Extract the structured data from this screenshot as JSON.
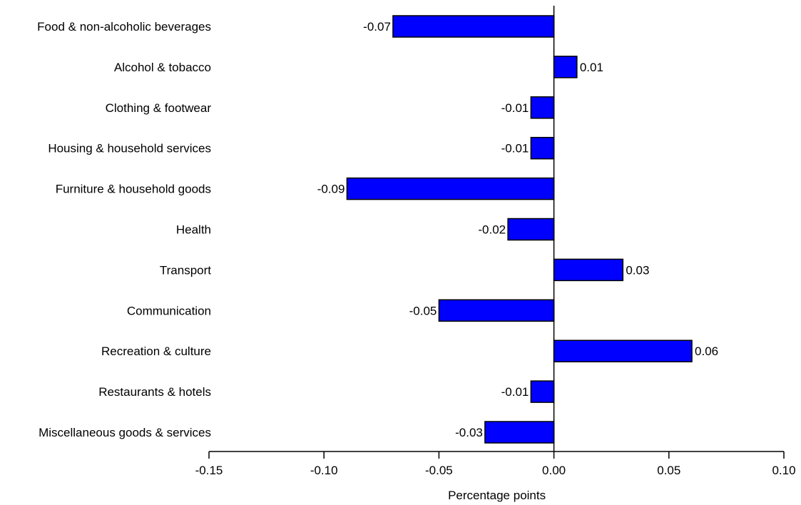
{
  "chart_data": {
    "type": "bar",
    "orientation": "horizontal",
    "title": "",
    "xlabel": "Percentage points",
    "ylabel": "",
    "categories": [
      "Food & non-alcoholic beverages",
      "Alcohol & tobacco",
      "Clothing & footwear",
      "Housing & household services",
      "Furniture & household goods",
      "Health",
      "Transport",
      "Communication",
      "Recreation & culture",
      "Restaurants & hotels",
      "Miscellaneous goods & services"
    ],
    "values": [
      -0.07,
      0.01,
      -0.01,
      -0.01,
      -0.09,
      -0.02,
      0.03,
      -0.05,
      0.06,
      -0.01,
      -0.03
    ],
    "data_labels": [
      "-0.07",
      "0.01",
      "-0.01",
      "-0.01",
      "-0.09",
      "-0.02",
      "0.03",
      "-0.05",
      "0.06",
      "-0.01",
      "-0.03"
    ],
    "xlim": [
      -0.15,
      0.1
    ],
    "xticks": [
      -0.15,
      -0.1,
      -0.05,
      0.0,
      0.05,
      0.1
    ],
    "xtick_labels": [
      "-0.15",
      "-0.10",
      "-0.05",
      "0.00",
      "0.05",
      "0.10"
    ],
    "grid": false,
    "legend": "none",
    "bar_color": "#0000ff",
    "bar_edge_color": "#000000"
  }
}
